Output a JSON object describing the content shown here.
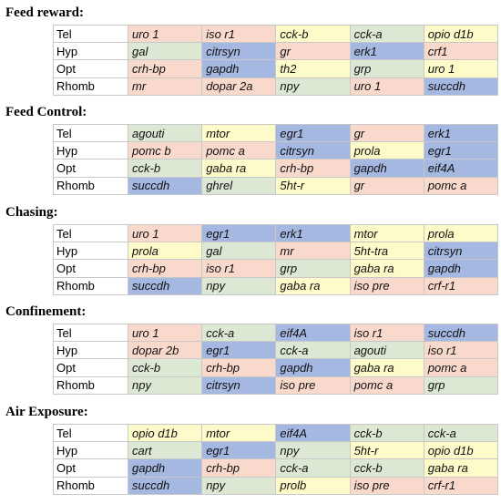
{
  "colors": {
    "red": "#f9d9cc",
    "yellow": "#fdfbc9",
    "green": "#dce8d4",
    "blue": "#a5b8e2"
  },
  "sections": [
    {
      "title": "Feed reward:",
      "rows": [
        {
          "label": "Tel",
          "cells": [
            {
              "text": "uro 1",
              "color": "red"
            },
            {
              "text": "iso r1",
              "color": "red"
            },
            {
              "text": "cck-b",
              "color": "yellow"
            },
            {
              "text": "cck-a",
              "color": "green"
            },
            {
              "text": "opio d1b",
              "color": "yellow"
            }
          ]
        },
        {
          "label": "Hyp",
          "cells": [
            {
              "text": "gal",
              "color": "green"
            },
            {
              "text": "citrsyn",
              "color": "blue"
            },
            {
              "text": "gr",
              "color": "red"
            },
            {
              "text": "erk1",
              "color": "blue"
            },
            {
              "text": "crf1",
              "color": "red"
            }
          ]
        },
        {
          "label": "Opt",
          "cells": [
            {
              "text": "crh-bp",
              "color": "red"
            },
            {
              "text": "gapdh",
              "color": "blue"
            },
            {
              "text": "th2",
              "color": "yellow"
            },
            {
              "text": "grp",
              "color": "green"
            },
            {
              "text": "uro 1",
              "color": "yellow"
            }
          ]
        },
        {
          "label": "Rhomb",
          "cells": [
            {
              "text": "mr",
              "color": "red"
            },
            {
              "text": "dopar 2a",
              "color": "red"
            },
            {
              "text": "npy",
              "color": "green"
            },
            {
              "text": "uro 1",
              "color": "red"
            },
            {
              "text": "succdh",
              "color": "blue"
            }
          ]
        }
      ]
    },
    {
      "title": "Feed Control:",
      "rows": [
        {
          "label": "Tel",
          "cells": [
            {
              "text": "agouti",
              "color": "green"
            },
            {
              "text": "mtor",
              "color": "yellow"
            },
            {
              "text": "egr1",
              "color": "blue"
            },
            {
              "text": "gr",
              "color": "red"
            },
            {
              "text": "erk1",
              "color": "blue"
            }
          ]
        },
        {
          "label": "Hyp",
          "cells": [
            {
              "text": "pomc b",
              "color": "red"
            },
            {
              "text": "pomc a",
              "color": "red"
            },
            {
              "text": "citrsyn",
              "color": "blue"
            },
            {
              "text": "prola",
              "color": "yellow"
            },
            {
              "text": "egr1",
              "color": "blue"
            }
          ]
        },
        {
          "label": "Opt",
          "cells": [
            {
              "text": "cck-b",
              "color": "green"
            },
            {
              "text": "gaba ra",
              "color": "yellow"
            },
            {
              "text": "crh-bp",
              "color": "red"
            },
            {
              "text": "gapdh",
              "color": "blue"
            },
            {
              "text": "eif4A",
              "color": "blue"
            }
          ]
        },
        {
          "label": "Rhomb",
          "cells": [
            {
              "text": "succdh",
              "color": "blue"
            },
            {
              "text": "ghrel",
              "color": "green"
            },
            {
              "text": "5ht-r",
              "color": "yellow"
            },
            {
              "text": "gr",
              "color": "red"
            },
            {
              "text": "pomc a",
              "color": "red"
            }
          ]
        }
      ]
    },
    {
      "title": "Chasing:",
      "rows": [
        {
          "label": "Tel",
          "cells": [
            {
              "text": "uro 1",
              "color": "red"
            },
            {
              "text": "egr1",
              "color": "blue"
            },
            {
              "text": "erk1",
              "color": "blue"
            },
            {
              "text": "mtor",
              "color": "yellow"
            },
            {
              "text": "prola",
              "color": "yellow"
            }
          ]
        },
        {
          "label": "Hyp",
          "cells": [
            {
              "text": "prola",
              "color": "yellow"
            },
            {
              "text": "gal",
              "color": "green"
            },
            {
              "text": "mr",
              "color": "red"
            },
            {
              "text": "5ht-tra",
              "color": "yellow"
            },
            {
              "text": "citrsyn",
              "color": "blue"
            }
          ]
        },
        {
          "label": "Opt",
          "cells": [
            {
              "text": "crh-bp",
              "color": "red"
            },
            {
              "text": "iso r1",
              "color": "red"
            },
            {
              "text": "grp",
              "color": "green"
            },
            {
              "text": "gaba ra",
              "color": "yellow"
            },
            {
              "text": "gapdh",
              "color": "blue"
            }
          ]
        },
        {
          "label": "Rhomb",
          "cells": [
            {
              "text": "succdh",
              "color": "blue"
            },
            {
              "text": "npy",
              "color": "green"
            },
            {
              "text": "gaba ra",
              "color": "yellow"
            },
            {
              "text": "iso pre",
              "color": "red"
            },
            {
              "text": "crf-r1",
              "color": "red"
            }
          ]
        }
      ]
    },
    {
      "title": "Confinement:",
      "rows": [
        {
          "label": "Tel",
          "cells": [
            {
              "text": "uro 1",
              "color": "red"
            },
            {
              "text": "cck-a",
              "color": "green"
            },
            {
              "text": "eif4A",
              "color": "blue"
            },
            {
              "text": "iso r1",
              "color": "red"
            },
            {
              "text": "succdh",
              "color": "blue"
            }
          ]
        },
        {
          "label": "Hyp",
          "cells": [
            {
              "text": "dopar 2b",
              "color": "red"
            },
            {
              "text": "egr1",
              "color": "blue"
            },
            {
              "text": "cck-a",
              "color": "green"
            },
            {
              "text": "agouti",
              "color": "green"
            },
            {
              "text": "iso r1",
              "color": "red"
            }
          ]
        },
        {
          "label": "Opt",
          "cells": [
            {
              "text": "cck-b",
              "color": "green"
            },
            {
              "text": "crh-bp",
              "color": "red"
            },
            {
              "text": "gapdh",
              "color": "blue"
            },
            {
              "text": "gaba ra",
              "color": "yellow"
            },
            {
              "text": "pomc a",
              "color": "red"
            }
          ]
        },
        {
          "label": "Rhomb",
          "cells": [
            {
              "text": "npy",
              "color": "green"
            },
            {
              "text": "citrsyn",
              "color": "blue"
            },
            {
              "text": "iso pre",
              "color": "red"
            },
            {
              "text": "pomc a",
              "color": "red"
            },
            {
              "text": "grp",
              "color": "green"
            }
          ]
        }
      ]
    },
    {
      "title": "Air Exposure:",
      "rows": [
        {
          "label": "Tel",
          "cells": [
            {
              "text": "opio d1b",
              "color": "yellow"
            },
            {
              "text": "mtor",
              "color": "yellow"
            },
            {
              "text": "eif4A",
              "color": "blue"
            },
            {
              "text": "cck-b",
              "color": "green"
            },
            {
              "text": "cck-a",
              "color": "green"
            }
          ]
        },
        {
          "label": "Hyp",
          "cells": [
            {
              "text": "cart",
              "color": "green"
            },
            {
              "text": "egr1",
              "color": "blue"
            },
            {
              "text": "npy",
              "color": "green"
            },
            {
              "text": "5ht-r",
              "color": "yellow"
            },
            {
              "text": "opio d1b",
              "color": "yellow"
            }
          ]
        },
        {
          "label": "Opt",
          "cells": [
            {
              "text": "gapdh",
              "color": "blue"
            },
            {
              "text": "crh-bp",
              "color": "red"
            },
            {
              "text": "cck-a",
              "color": "green"
            },
            {
              "text": "cck-b",
              "color": "green"
            },
            {
              "text": "gaba ra",
              "color": "yellow"
            }
          ]
        },
        {
          "label": "Rhomb",
          "cells": [
            {
              "text": "succdh",
              "color": "blue"
            },
            {
              "text": "npy",
              "color": "green"
            },
            {
              "text": "prolb",
              "color": "yellow"
            },
            {
              "text": "iso pre",
              "color": "red"
            },
            {
              "text": "crf-r1",
              "color": "red"
            }
          ]
        }
      ]
    }
  ]
}
